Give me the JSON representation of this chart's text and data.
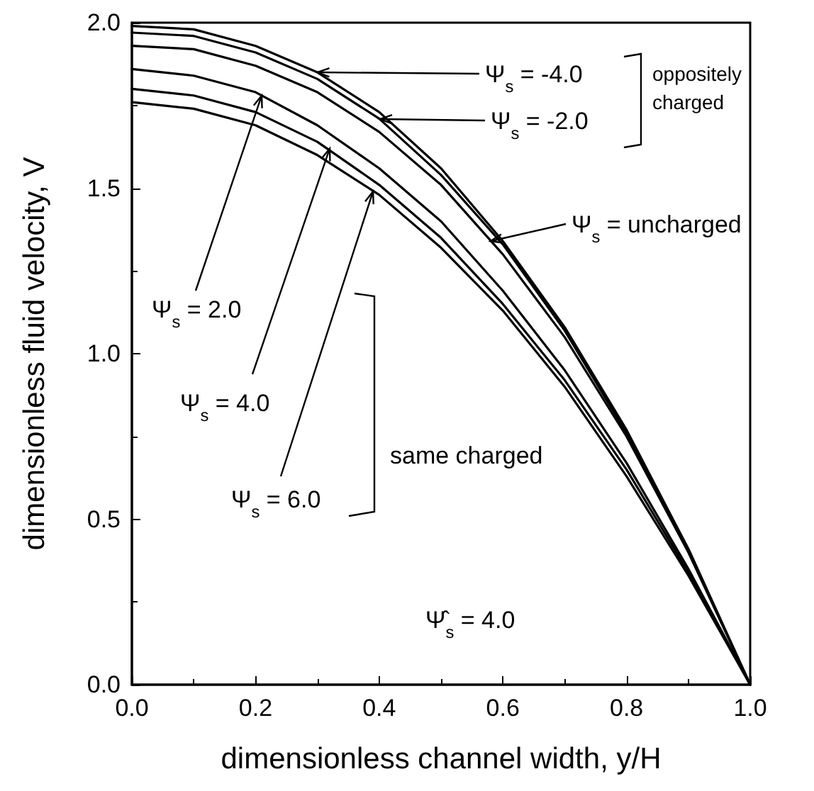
{
  "chart_data": {
    "type": "line",
    "xlabel": "dimensionless channel width, y/H",
    "ylabel": "dimensionless fluid velocity, V",
    "x": [
      0,
      0.1,
      0.2,
      0.3,
      0.4,
      0.5,
      0.6,
      0.7,
      0.8,
      0.9,
      1.0
    ],
    "series": [
      {
        "color": "#000000",
        "values": [
          1.99,
          1.98,
          1.93,
          1.85,
          1.73,
          1.56,
          1.34,
          1.08,
          0.77,
          0.41,
          0
        ]
      },
      {
        "color": "#000000",
        "values": [
          1.97,
          1.96,
          1.91,
          1.83,
          1.71,
          1.54,
          1.33,
          1.07,
          0.76,
          0.41,
          0
        ]
      },
      {
        "color": "#000000",
        "values": [
          1.93,
          1.92,
          1.87,
          1.79,
          1.67,
          1.51,
          1.3,
          1.05,
          0.75,
          0.4,
          0
        ]
      },
      {
        "color": "#000000",
        "values": [
          1.86,
          1.84,
          1.79,
          1.69,
          1.56,
          1.4,
          1.19,
          0.95,
          0.67,
          0.35,
          0
        ]
      },
      {
        "color": "#000000",
        "values": [
          1.8,
          1.78,
          1.73,
          1.64,
          1.51,
          1.35,
          1.15,
          0.92,
          0.65,
          0.34,
          0
        ]
      },
      {
        "color": "#000000",
        "values": [
          1.76,
          1.74,
          1.69,
          1.6,
          1.48,
          1.32,
          1.13,
          0.9,
          0.63,
          0.33,
          0
        ]
      }
    ],
    "xlim": [
      0,
      1.0
    ],
    "xticks": [
      {
        "value": 0,
        "label": "0.0"
      },
      0.2,
      0.4,
      0.6,
      0.8,
      {
        "value": 1,
        "label": "1.0"
      }
    ],
    "ylim": [
      0,
      2.0
    ],
    "yticks": [
      {
        "value": 0,
        "label": "0.0"
      },
      0.5,
      {
        "value": 1,
        "label": "1.0"
      },
      1.5,
      {
        "value": 2,
        "label": "2.0"
      }
    ],
    "grid": false,
    "marker": "none",
    "line_style": "solid",
    "annotations": [
      {
        "text": "Ψ$_{s}$ = -4.0",
        "x": 0.3,
        "y": 1.85
      },
      "Ψ$_{s}$ = -2.0",
      {
        "text": "Ψ$_{s}$ = uncharged",
        "x": 0.58,
        "y": 1.34
      },
      {
        "text": "Ψ$_{s}$ = 2.0",
        "x": 0.21,
        "y": 1.78
      },
      {
        "text": "Ψ$_{s}$ = 4.0",
        "x": 0.32,
        "y": 1.62
      },
      {
        "text": "Ψ$_{s}$ = 6.0",
        "x": 0.39,
        "y": 1.49
      },
      "oppositely charged",
      "same charged",
      "Ψ̂$_{s}$ = 4.0"
    ]
  }
}
